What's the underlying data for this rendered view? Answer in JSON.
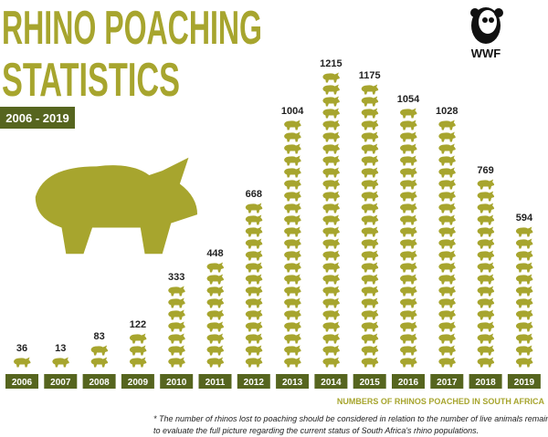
{
  "logo_text": "WWF",
  "chart_data": {
    "type": "pictograph",
    "title": [
      "RHINO POACHING",
      "STATISTICS"
    ],
    "subtitle": "2006 - 2019",
    "x_label": "NUMBERS OF RHINOS POACHED IN SOUTH AFRICA",
    "footnote": [
      "* The number of rhinos lost to poaching should be considered in relation to the number of live animals remaining",
      "to evaluate the full picture regarding the current status of South Africa's rhino populations."
    ],
    "categories": [
      "2006",
      "2007",
      "2008",
      "2009",
      "2010",
      "2011",
      "2012",
      "2013",
      "2014",
      "2015",
      "2016",
      "2017",
      "2018",
      "2019"
    ],
    "values": [
      36,
      13,
      83,
      122,
      333,
      448,
      668,
      1004,
      1215,
      1175,
      1054,
      1028,
      769,
      594
    ],
    "color": "#a7a52e",
    "label_box_color": "#56651f"
  }
}
